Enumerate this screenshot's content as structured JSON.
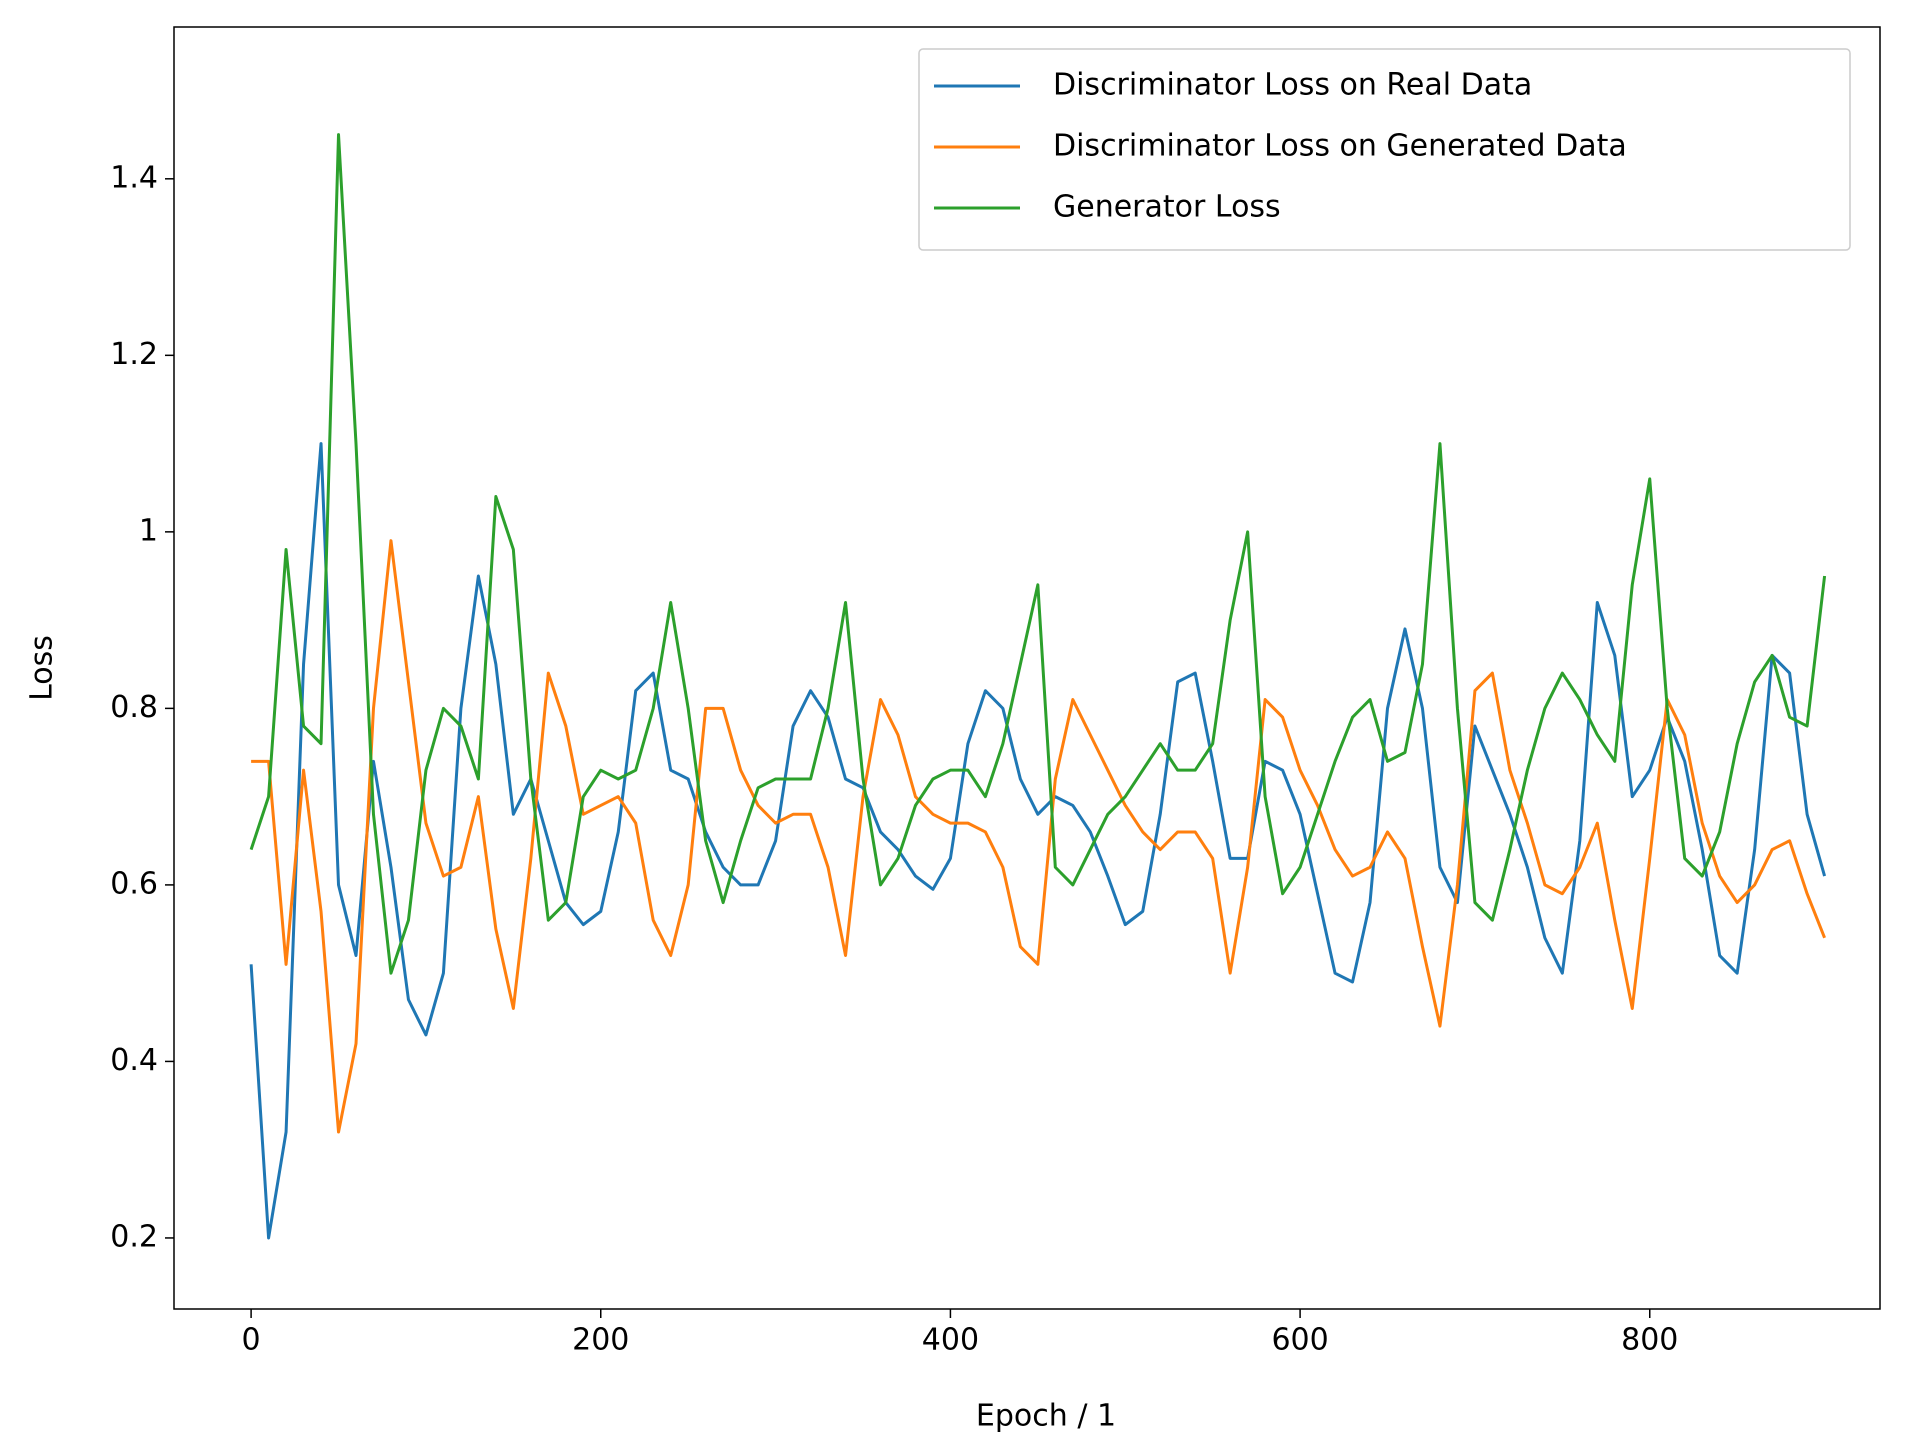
{
  "chart_data": {
    "type": "line",
    "xlabel": "Epoch / 1",
    "ylabel": "Loss",
    "x": [
      0,
      10,
      20,
      30,
      40,
      50,
      60,
      70,
      80,
      90,
      100,
      110,
      120,
      130,
      140,
      150,
      160,
      170,
      180,
      190,
      200,
      210,
      220,
      230,
      240,
      250,
      260,
      270,
      280,
      290,
      300,
      310,
      320,
      330,
      340,
      350,
      360,
      370,
      380,
      390,
      400,
      410,
      420,
      430,
      440,
      450,
      460,
      470,
      480,
      490,
      500,
      510,
      520,
      530,
      540,
      550,
      560,
      570,
      580,
      590,
      600,
      610,
      620,
      630,
      640,
      650,
      660,
      670,
      680,
      690,
      700,
      710,
      720,
      730,
      740,
      750,
      760,
      770,
      780,
      790,
      800,
      810,
      820,
      830,
      840,
      850,
      860,
      870,
      880,
      890,
      900
    ],
    "series": [
      {
        "name": "Discriminator Loss on Real Data",
        "color": "#1f77b4",
        "values": [
          0.51,
          0.2,
          0.32,
          0.85,
          1.1,
          0.6,
          0.52,
          0.74,
          0.62,
          0.47,
          0.43,
          0.5,
          0.8,
          0.95,
          0.85,
          0.68,
          0.72,
          0.65,
          0.58,
          0.555,
          0.57,
          0.66,
          0.82,
          0.84,
          0.73,
          0.72,
          0.66,
          0.62,
          0.6,
          0.6,
          0.65,
          0.78,
          0.82,
          0.79,
          0.72,
          0.71,
          0.66,
          0.64,
          0.61,
          0.595,
          0.63,
          0.76,
          0.82,
          0.8,
          0.72,
          0.68,
          0.7,
          0.69,
          0.66,
          0.61,
          0.555,
          0.57,
          0.68,
          0.83,
          0.84,
          0.74,
          0.63,
          0.63,
          0.74,
          0.73,
          0.68,
          0.59,
          0.5,
          0.49,
          0.58,
          0.8,
          0.89,
          0.8,
          0.62,
          0.58,
          0.78,
          0.73,
          0.68,
          0.62,
          0.54,
          0.5,
          0.65,
          0.92,
          0.86,
          0.7,
          0.73,
          0.79,
          0.74,
          0.64,
          0.52,
          0.5,
          0.64,
          0.86,
          0.84,
          0.68,
          0.61
        ]
      },
      {
        "name": "Discriminator Loss on Generated Data",
        "color": "#ff7f0e",
        "values": [
          0.74,
          0.74,
          0.51,
          0.73,
          0.57,
          0.32,
          0.42,
          0.8,
          0.99,
          0.83,
          0.67,
          0.61,
          0.62,
          0.7,
          0.55,
          0.46,
          0.63,
          0.84,
          0.78,
          0.68,
          0.69,
          0.7,
          0.67,
          0.56,
          0.52,
          0.6,
          0.8,
          0.8,
          0.73,
          0.69,
          0.67,
          0.68,
          0.68,
          0.62,
          0.52,
          0.7,
          0.81,
          0.77,
          0.7,
          0.68,
          0.67,
          0.67,
          0.66,
          0.62,
          0.53,
          0.51,
          0.72,
          0.81,
          0.77,
          0.73,
          0.69,
          0.66,
          0.64,
          0.66,
          0.66,
          0.63,
          0.5,
          0.62,
          0.81,
          0.79,
          0.73,
          0.69,
          0.64,
          0.61,
          0.62,
          0.66,
          0.63,
          0.53,
          0.44,
          0.6,
          0.82,
          0.84,
          0.73,
          0.67,
          0.6,
          0.59,
          0.62,
          0.67,
          0.56,
          0.46,
          0.63,
          0.81,
          0.77,
          0.67,
          0.61,
          0.58,
          0.6,
          0.64,
          0.65,
          0.59,
          0.54
        ]
      },
      {
        "name": "Generator Loss",
        "color": "#2ca02c",
        "values": [
          0.64,
          0.7,
          0.98,
          0.78,
          0.76,
          1.45,
          1.1,
          0.68,
          0.5,
          0.56,
          0.73,
          0.8,
          0.78,
          0.72,
          1.04,
          0.98,
          0.72,
          0.56,
          0.58,
          0.7,
          0.73,
          0.72,
          0.73,
          0.8,
          0.92,
          0.8,
          0.65,
          0.58,
          0.65,
          0.71,
          0.72,
          0.72,
          0.72,
          0.8,
          0.92,
          0.72,
          0.6,
          0.63,
          0.69,
          0.72,
          0.73,
          0.73,
          0.7,
          0.76,
          0.85,
          0.94,
          0.62,
          0.6,
          0.64,
          0.68,
          0.7,
          0.73,
          0.76,
          0.73,
          0.73,
          0.76,
          0.9,
          1.0,
          0.7,
          0.59,
          0.62,
          0.68,
          0.74,
          0.79,
          0.81,
          0.74,
          0.75,
          0.85,
          1.1,
          0.8,
          0.58,
          0.56,
          0.64,
          0.73,
          0.8,
          0.84,
          0.81,
          0.77,
          0.74,
          0.94,
          1.06,
          0.8,
          0.63,
          0.61,
          0.66,
          0.76,
          0.83,
          0.86,
          0.79,
          0.78,
          0.95
        ]
      }
    ],
    "xlim": [
      -44.1,
      931.7
    ],
    "ylim": [
      0.1195,
      1.572
    ],
    "xticks": [
      0,
      200,
      400,
      600,
      800
    ],
    "yticks": [
      0.2,
      0.4,
      0.6,
      0.8,
      1.0,
      1.2,
      1.4
    ],
    "legend": "upper right",
    "grid": false
  }
}
